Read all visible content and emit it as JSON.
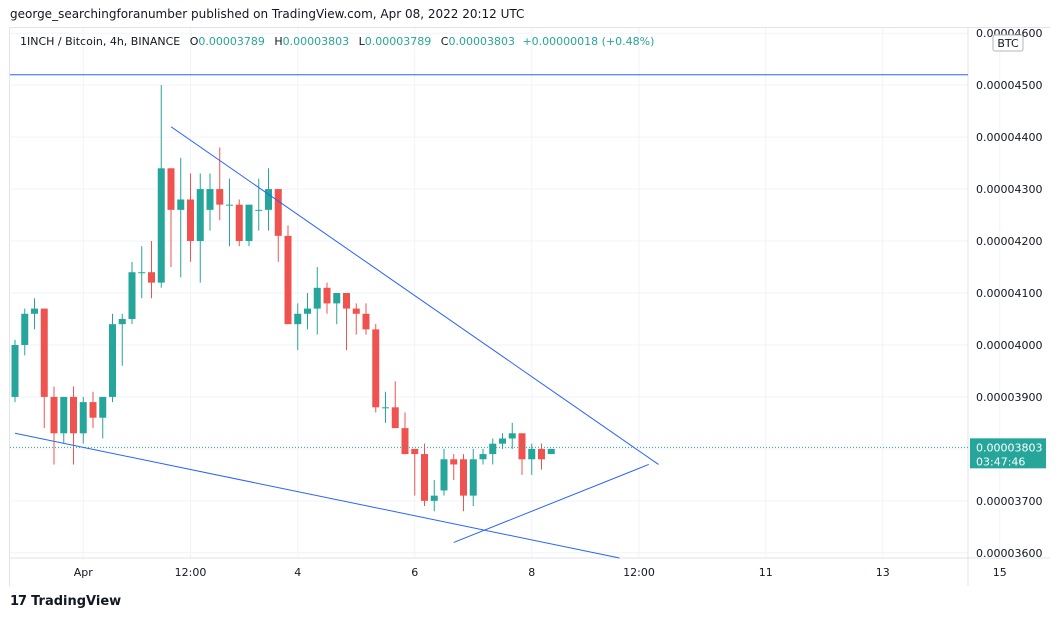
{
  "caption": "george_searchingforanumber published on TradingView.com, Apr 08, 2022 20:12 UTC",
  "legend": {
    "symbol": "1INCH / Bitcoin, 4h, BINANCE",
    "o_label": "O",
    "o": "0.00003789",
    "h_label": "H",
    "h": "0.00003803",
    "l_label": "L",
    "l": "0.00003789",
    "c_label": "C",
    "c": "0.00003803",
    "change": "+0.00000018 (+0.48%)"
  },
  "currency_badge": "BTC",
  "last_price": {
    "value": "0.00003803",
    "countdown": "03:47:46"
  },
  "footer": {
    "logo_mark": "17",
    "logo_text": "TradingView"
  },
  "colors": {
    "up": "#26a69a",
    "down": "#ef5350",
    "trendline": "#2962ff"
  },
  "chart_data": {
    "type": "candlestick",
    "interval": "4h",
    "ylim": [
      3.59e-05,
      4.61e-05
    ],
    "y_ticks": [
      "0.00003600",
      "0.00003700",
      "0.00003800",
      "0.00003900",
      "0.00004000",
      "0.00004100",
      "0.00004200",
      "0.00004300",
      "0.00004400",
      "0.00004500",
      "0.00004600"
    ],
    "x_ticks": [
      {
        "label": "Apr",
        "i": 7
      },
      {
        "label": "12:00",
        "i": 18
      },
      {
        "label": "4",
        "i": 29
      },
      {
        "label": "6",
        "i": 41
      },
      {
        "label": "8",
        "i": 53
      },
      {
        "label": "12:00",
        "i": 64
      },
      {
        "label": "11",
        "i": 77
      },
      {
        "label": "13",
        "i": 89
      },
      {
        "label": "15",
        "i": 101
      }
    ],
    "candles": [
      [
        3.9e-05,
        4.01e-05,
        3.89e-05,
        4e-05
      ],
      [
        4e-05,
        4.07e-05,
        3.98e-05,
        4.06e-05
      ],
      [
        4.06e-05,
        4.09e-05,
        4.03e-05,
        4.07e-05
      ],
      [
        4.07e-05,
        4.07e-05,
        3.84e-05,
        3.9e-05
      ],
      [
        3.9e-05,
        3.92e-05,
        3.77e-05,
        3.83e-05
      ],
      [
        3.83e-05,
        3.9e-05,
        3.81e-05,
        3.9e-05
      ],
      [
        3.9e-05,
        3.92e-05,
        3.77e-05,
        3.83e-05
      ],
      [
        3.83e-05,
        3.9e-05,
        3.81e-05,
        3.89e-05
      ],
      [
        3.89e-05,
        3.91e-05,
        3.84e-05,
        3.86e-05
      ],
      [
        3.86e-05,
        3.9e-05,
        3.82e-05,
        3.9e-05
      ],
      [
        3.9e-05,
        4.06e-05,
        3.89e-05,
        4.04e-05
      ],
      [
        4.04e-05,
        4.06e-05,
        3.96e-05,
        4.05e-05
      ],
      [
        4.05e-05,
        4.16e-05,
        4.04e-05,
        4.14e-05
      ],
      [
        4.14e-05,
        4.19e-05,
        4.09e-05,
        4.14e-05
      ],
      [
        4.14e-05,
        4.2e-05,
        4.09e-05,
        4.12e-05
      ],
      [
        4.12e-05,
        4.5e-05,
        4.11e-05,
        4.34e-05
      ],
      [
        4.34e-05,
        4.34e-05,
        4.15e-05,
        4.26e-05
      ],
      [
        4.26e-05,
        4.36e-05,
        4.13e-05,
        4.28e-05
      ],
      [
        4.28e-05,
        4.33e-05,
        4.16e-05,
        4.2e-05
      ],
      [
        4.2e-05,
        4.33e-05,
        4.12e-05,
        4.3e-05
      ],
      [
        4.26e-05,
        4.33e-05,
        4.22e-05,
        4.3e-05
      ],
      [
        4.3e-05,
        4.38e-05,
        4.24e-05,
        4.27e-05
      ],
      [
        4.27e-05,
        4.32e-05,
        4.19e-05,
        4.27e-05
      ],
      [
        4.27e-05,
        4.28e-05,
        4.19e-05,
        4.2e-05
      ],
      [
        4.2e-05,
        4.27e-05,
        4.19e-05,
        4.27e-05
      ],
      [
        4.26e-05,
        4.32e-05,
        4.22e-05,
        4.26e-05
      ],
      [
        4.26e-05,
        4.34e-05,
        4.22e-05,
        4.3e-05
      ],
      [
        4.3e-05,
        4.3e-05,
        4.16e-05,
        4.21e-05
      ],
      [
        4.21e-05,
        4.23e-05,
        4.04e-05,
        4.04e-05
      ],
      [
        4.04e-05,
        4.08e-05,
        3.99e-05,
        4.06e-05
      ],
      [
        4.06e-05,
        4.1e-05,
        4.03e-05,
        4.07e-05
      ],
      [
        4.07e-05,
        4.15e-05,
        4.02e-05,
        4.11e-05
      ],
      [
        4.11e-05,
        4.12e-05,
        4.06e-05,
        4.08e-05
      ],
      [
        4.08e-05,
        4.1e-05,
        4.04e-05,
        4.1e-05
      ],
      [
        4.1e-05,
        4.1e-05,
        3.99e-05,
        4.07e-05
      ],
      [
        4.07e-05,
        4.08e-05,
        4.02e-05,
        4.06e-05
      ],
      [
        4.06e-05,
        4.08e-05,
        4.02e-05,
        4.03e-05
      ],
      [
        4.03e-05,
        4.04e-05,
        3.87e-05,
        3.88e-05
      ],
      [
        3.88e-05,
        3.91e-05,
        3.85e-05,
        3.88e-05
      ],
      [
        3.88e-05,
        3.93e-05,
        3.84e-05,
        3.84e-05
      ],
      [
        3.84e-05,
        3.87e-05,
        3.79e-05,
        3.79e-05
      ],
      [
        3.8e-05,
        3.8e-05,
        3.71e-05,
        3.79e-05
      ],
      [
        3.79e-05,
        3.81e-05,
        3.69e-05,
        3.7e-05
      ],
      [
        3.7e-05,
        3.74e-05,
        3.68e-05,
        3.71e-05
      ],
      [
        3.72e-05,
        3.8e-05,
        3.71e-05,
        3.78e-05
      ],
      [
        3.78e-05,
        3.79e-05,
        3.74e-05,
        3.77e-05
      ],
      [
        3.78e-05,
        3.79e-05,
        3.68e-05,
        3.71e-05
      ],
      [
        3.71e-05,
        3.8e-05,
        3.69e-05,
        3.78e-05
      ],
      [
        3.78e-05,
        3.8e-05,
        3.77e-05,
        3.79e-05
      ],
      [
        3.79e-05,
        3.82e-05,
        3.77e-05,
        3.81e-05
      ],
      [
        3.81e-05,
        3.83e-05,
        3.8e-05,
        3.82e-05
      ],
      [
        3.82e-05,
        3.85e-05,
        3.8e-05,
        3.83e-05
      ],
      [
        3.83e-05,
        3.83e-05,
        3.75e-05,
        3.78e-05
      ],
      [
        3.78e-05,
        3.81e-05,
        3.75e-05,
        3.8e-05
      ],
      [
        3.8e-05,
        3.81e-05,
        3.76e-05,
        3.78e-05
      ],
      [
        3.79e-05,
        3.8e-05,
        3.79e-05,
        3.8e-05
      ]
    ],
    "last_value": 3.803e-05,
    "horizontal_line": 4.52e-05,
    "trendlines": [
      {
        "name": "upper-resistance",
        "from": [
          16,
          4.42e-05
        ],
        "to": [
          66,
          3.77e-05
        ]
      },
      {
        "name": "lower-support",
        "from": [
          0,
          3.83e-05
        ],
        "to": [
          62,
          3.59e-05
        ]
      },
      {
        "name": "rising-support",
        "from": [
          45,
          3.62e-05
        ],
        "to": [
          65,
          3.77e-05
        ]
      }
    ]
  }
}
